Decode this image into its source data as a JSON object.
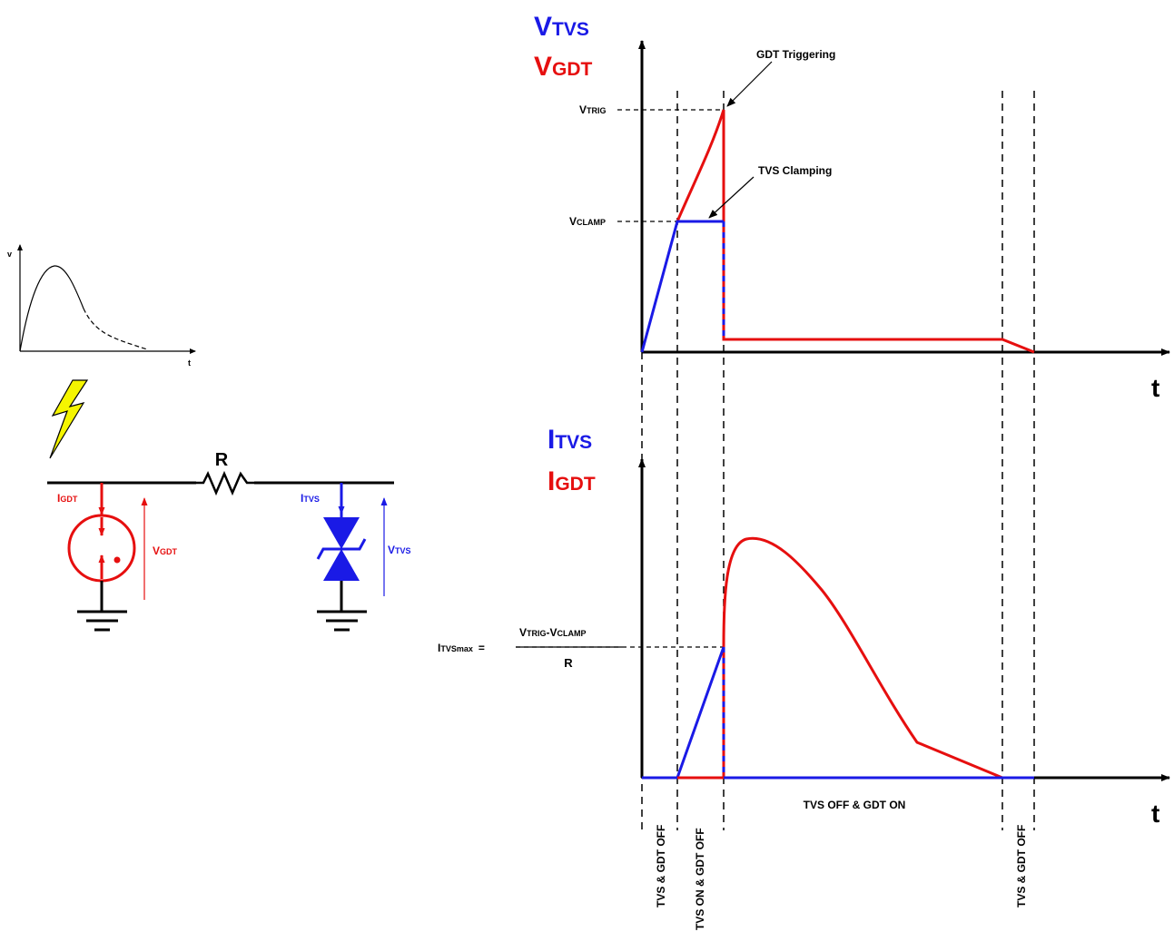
{
  "colors": {
    "tvs": "#1a1ae6",
    "gdt": "#e60f0f",
    "ink": "#000000",
    "bolt": "#f5f500"
  },
  "circuit": {
    "inset": {
      "v": "v",
      "t": "t"
    },
    "resistor": "R",
    "igdt": {
      "main": "I",
      "sub": "GDT"
    },
    "vgdt": {
      "main": "V",
      "sub": "GDT"
    },
    "itvs": {
      "main": "I",
      "sub": "TVS"
    },
    "vtvs": {
      "main": "V",
      "sub": "TVS"
    }
  },
  "top_plot": {
    "label_tvs": {
      "main": "V",
      "sub": "TVS"
    },
    "label_gdt": {
      "main": "V",
      "sub": "GDT"
    },
    "trig": {
      "main": "V",
      "sub": "TRIG"
    },
    "clamp": {
      "main": "V",
      "sub": "CLAMP"
    },
    "annotation_trigger": "GDT Triggering",
    "annotation_clamp": "TVS Clamping",
    "axis_t": "t"
  },
  "bottom_plot": {
    "label_tvs": {
      "main": "I",
      "sub": "TVS"
    },
    "label_gdt": {
      "main": "I",
      "sub": "GDT"
    },
    "itvsmax": {
      "main": "I",
      "sub": "TVSmax",
      "eq": "="
    },
    "numerator": {
      "a": "V",
      "a_sub": "TRIG",
      "dash": "-",
      "b": "V",
      "b_sub": "CLAMP"
    },
    "denominator": "R",
    "axis_t": "t",
    "phase_on": "TVS OFF & GDT ON"
  },
  "phases": {
    "p1": "TVS & GDT OFF",
    "p2": "TVS ON & GDT OFF",
    "p3": "TVS & GDT OFF"
  }
}
